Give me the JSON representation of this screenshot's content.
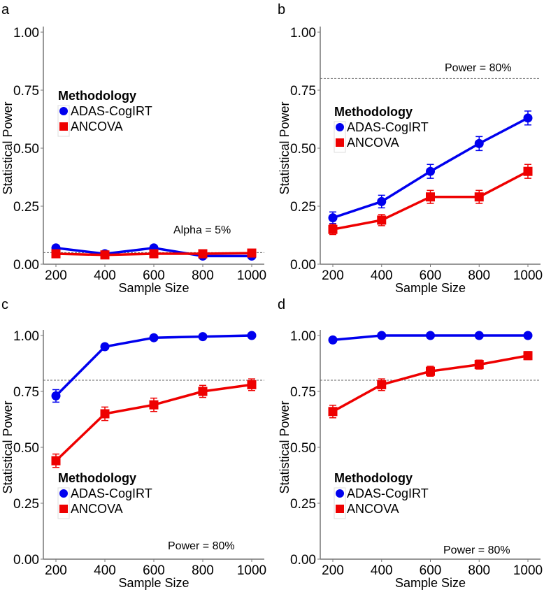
{
  "chart_data": [
    {
      "panel": "a",
      "type": "line",
      "xlabel": "Sample Size",
      "ylabel": "Statistical Power",
      "ylim": [
        0,
        1
      ],
      "x": [
        200,
        400,
        600,
        800,
        1000
      ],
      "yticks": [
        "0.00",
        "0.25",
        "0.50",
        "0.75",
        "1.00"
      ],
      "xticks": [
        "200",
        "400",
        "600",
        "800",
        "1000"
      ],
      "ref_line": {
        "value": 0.05,
        "label": "Alpha = 5%"
      },
      "legend": {
        "title": "Methodology",
        "position": "upper-left"
      },
      "series": [
        {
          "name": "ADAS-CogIRT",
          "color": "#0000ee",
          "marker": "circle",
          "values": [
            0.07,
            0.045,
            0.07,
            0.035,
            0.035
          ],
          "err": [
            0.01,
            0.01,
            0.01,
            0.01,
            0.01
          ]
        },
        {
          "name": "ANCOVA",
          "color": "#ee0000",
          "marker": "square",
          "values": [
            0.045,
            0.04,
            0.045,
            0.045,
            0.048
          ],
          "err": [
            0.01,
            0.01,
            0.01,
            0.01,
            0.01
          ]
        }
      ]
    },
    {
      "panel": "b",
      "type": "line",
      "xlabel": "Sample Size",
      "ylabel": "Statistical Power",
      "ylim": [
        0,
        1
      ],
      "x": [
        200,
        400,
        600,
        800,
        1000
      ],
      "yticks": [
        "0.00",
        "0.25",
        "0.50",
        "0.75",
        "1.00"
      ],
      "xticks": [
        "200",
        "400",
        "600",
        "800",
        "1000"
      ],
      "ref_line": {
        "value": 0.8,
        "label": "Power = 80%"
      },
      "legend": {
        "title": "Methodology",
        "position": "center-left"
      },
      "series": [
        {
          "name": "ADAS-CogIRT",
          "color": "#0000ee",
          "marker": "circle",
          "values": [
            0.2,
            0.27,
            0.4,
            0.52,
            0.63
          ],
          "err": [
            0.025,
            0.027,
            0.03,
            0.03,
            0.03
          ]
        },
        {
          "name": "ANCOVA",
          "color": "#ee0000",
          "marker": "square",
          "values": [
            0.15,
            0.19,
            0.29,
            0.29,
            0.4
          ],
          "err": [
            0.022,
            0.024,
            0.028,
            0.028,
            0.03
          ]
        }
      ]
    },
    {
      "panel": "c",
      "type": "line",
      "xlabel": "Sample Size",
      "ylabel": "Statistical Power",
      "ylim": [
        0,
        1
      ],
      "x": [
        200,
        400,
        600,
        800,
        1000
      ],
      "yticks": [
        "0.00",
        "0.25",
        "0.50",
        "0.75",
        "1.00"
      ],
      "xticks": [
        "200",
        "400",
        "600",
        "800",
        "1000"
      ],
      "ref_line": {
        "value": 0.8,
        "label": "Power = 80%"
      },
      "legend": {
        "title": "Methodology",
        "position": "lower-left"
      },
      "series": [
        {
          "name": "ADAS-CogIRT",
          "color": "#0000ee",
          "marker": "circle",
          "values": [
            0.73,
            0.95,
            0.99,
            0.995,
            1.0
          ],
          "err": [
            0.028,
            0.01,
            0.005,
            0.003,
            0.002
          ]
        },
        {
          "name": "ANCOVA",
          "color": "#ee0000",
          "marker": "square",
          "values": [
            0.44,
            0.65,
            0.69,
            0.75,
            0.78
          ],
          "err": [
            0.03,
            0.03,
            0.03,
            0.027,
            0.026
          ]
        }
      ]
    },
    {
      "panel": "d",
      "type": "line",
      "xlabel": "Sample Size",
      "ylabel": "Statistical Power",
      "ylim": [
        0,
        1
      ],
      "x": [
        200,
        400,
        600,
        800,
        1000
      ],
      "yticks": [
        "0.00",
        "0.25",
        "0.50",
        "0.75",
        "1.00"
      ],
      "xticks": [
        "200",
        "400",
        "600",
        "800",
        "1000"
      ],
      "ref_line": {
        "value": 0.8,
        "label": "Power = 80%"
      },
      "legend": {
        "title": "Methodology",
        "position": "lower-left"
      },
      "series": [
        {
          "name": "ADAS-CogIRT",
          "color": "#0000ee",
          "marker": "circle",
          "values": [
            0.98,
            1.0,
            1.0,
            1.0,
            1.0
          ],
          "err": [
            0.008,
            0.002,
            0.002,
            0.002,
            0.002
          ]
        },
        {
          "name": "ANCOVA",
          "color": "#ee0000",
          "marker": "square",
          "values": [
            0.66,
            0.78,
            0.84,
            0.87,
            0.91
          ],
          "err": [
            0.028,
            0.026,
            0.022,
            0.02,
            0.018
          ]
        }
      ]
    }
  ]
}
